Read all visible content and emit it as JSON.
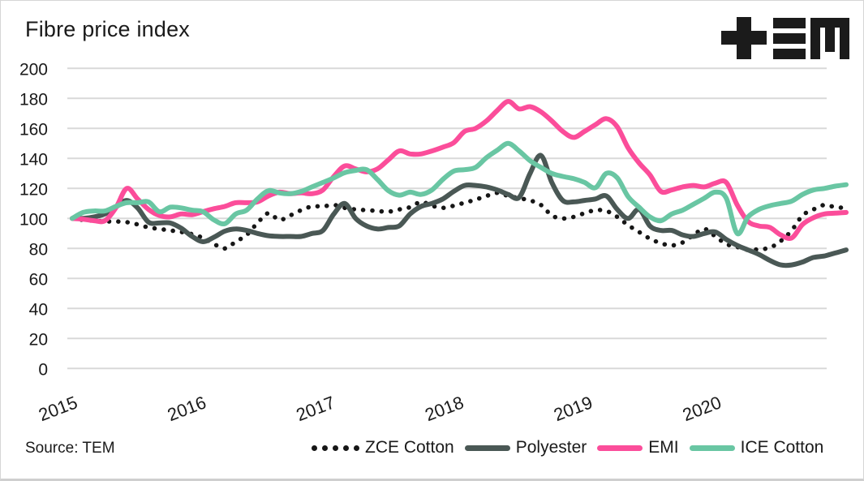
{
  "header": {
    "title": "Fibre price index",
    "logo": "TEM"
  },
  "source": {
    "label": "Source: TEM"
  },
  "colors": {
    "zce_cotton": "#161616",
    "polyester": "#4a5855",
    "emi": "#fb4d9a",
    "ice_cotton": "#69c6a3",
    "gridline": "#d9d9d9",
    "text": "#1a1a1a"
  },
  "chart_data": {
    "type": "line",
    "title": "Fibre price index",
    "x_unit": "month",
    "x_start": "2015-01",
    "x_end": "2020-12",
    "xticks": [
      "2015",
      "2016",
      "2017",
      "2018",
      "2019",
      "2020"
    ],
    "yticks": [
      200,
      180,
      160,
      140,
      120,
      100,
      80,
      60,
      40,
      20,
      0
    ],
    "ylim": [
      0,
      200
    ],
    "grid": "horizontal",
    "legend_position": "bottom",
    "series": [
      {
        "name": "ZCE Cotton",
        "style": "dotted",
        "color": "#161616",
        "values": [
          100,
          99,
          98.5,
          98,
          98,
          97.5,
          96,
          94,
          93,
          92,
          91,
          89.5,
          87,
          83,
          80,
          84.5,
          89,
          97,
          103.5,
          99,
          102,
          105.5,
          108,
          108,
          109,
          107,
          106,
          105.5,
          105,
          104.5,
          106,
          107.5,
          111,
          108.5,
          107,
          108.5,
          110.5,
          112.5,
          115,
          117,
          115,
          113.5,
          112,
          109,
          102,
          100,
          101,
          103.5,
          105.5,
          105,
          101,
          95.5,
          91,
          86.5,
          83.5,
          82,
          84,
          89,
          93,
          88,
          83,
          81,
          79,
          79.5,
          80.5,
          85,
          92,
          102,
          106,
          109,
          107.5,
          107
        ]
      },
      {
        "name": "Polyester",
        "style": "solid",
        "color": "#4a5855",
        "values": [
          100,
          100,
          101,
          103,
          107.5,
          112,
          107,
          97.5,
          97,
          97,
          93.5,
          88,
          84.5,
          87.5,
          91.5,
          93,
          92,
          90,
          88.5,
          88,
          88,
          88,
          90,
          92,
          103,
          110,
          100,
          95,
          93,
          94,
          95,
          103,
          108,
          110,
          113,
          118,
          122,
          122,
          121,
          119,
          116,
          114,
          130,
          142,
          124,
          112,
          111,
          112,
          113,
          115,
          106,
          100,
          106,
          95,
          92,
          92,
          89,
          88,
          90,
          91,
          86,
          82,
          79,
          76,
          72,
          69,
          69,
          71,
          74,
          75,
          77,
          79
        ]
      },
      {
        "name": "EMI",
        "style": "solid",
        "color": "#fb4d9a",
        "values": [
          100,
          99.5,
          98.5,
          98.5,
          107,
          120,
          113,
          106,
          102,
          101,
          103,
          102.5,
          104.5,
          106.5,
          108,
          110.5,
          110.5,
          111,
          115,
          117.5,
          116.5,
          117,
          116.5,
          119,
          128,
          135,
          133,
          131,
          133,
          139,
          145,
          143,
          143,
          145,
          147.5,
          150.5,
          158,
          160,
          165,
          172,
          178,
          173,
          174.5,
          171,
          165,
          158,
          154,
          158,
          162.5,
          166.5,
          161,
          147,
          137,
          129,
          118,
          119,
          121,
          122,
          121,
          123.5,
          124,
          109,
          98,
          95,
          94,
          89,
          87,
          96,
          100.5,
          103,
          103.5,
          104
        ]
      },
      {
        "name": "ICE Cotton",
        "style": "solid",
        "color": "#69c6a3",
        "values": [
          100,
          104,
          105,
          105,
          108,
          110.5,
          110.5,
          111,
          104.5,
          107.5,
          107,
          105.5,
          104.5,
          99,
          96.5,
          103,
          105.5,
          113,
          118.5,
          117,
          116.5,
          118,
          121,
          124,
          127,
          130.5,
          132,
          132.5,
          126,
          118.5,
          115.5,
          117.5,
          116,
          119,
          126,
          131.5,
          132.5,
          134,
          140.5,
          145.5,
          150,
          145,
          138.5,
          134,
          130,
          128,
          126.5,
          124,
          120.5,
          130,
          127,
          114.5,
          107.5,
          101,
          98.5,
          103,
          105.5,
          109.5,
          113.5,
          117.5,
          113.5,
          90,
          101,
          106,
          108.5,
          110,
          111.5,
          116,
          119,
          120,
          121.5,
          122.5
        ]
      }
    ]
  }
}
